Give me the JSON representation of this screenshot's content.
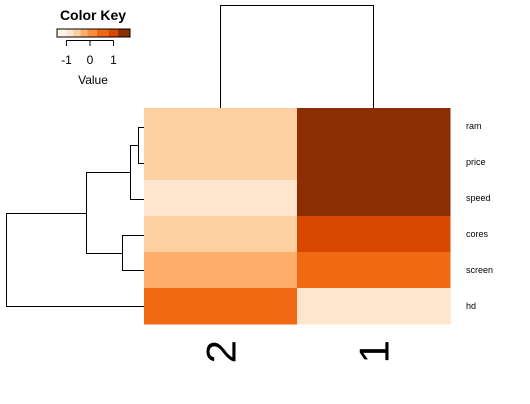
{
  "chart_data": {
    "type": "heatmap",
    "rows": [
      "ram",
      "price",
      "speed",
      "cores",
      "screen",
      "hd"
    ],
    "columns": [
      "2",
      "1"
    ],
    "values": [
      [
        -0.55,
        1.6
      ],
      [
        -0.55,
        1.6
      ],
      [
        -0.85,
        1.6
      ],
      [
        -0.55,
        1.0
      ],
      [
        -0.25,
        0.6
      ],
      [
        0.6,
        -1.0
      ]
    ],
    "color_key": {
      "title": "Color Key",
      "xlabel": "Value",
      "ticks": [
        "-1",
        "0",
        "1"
      ],
      "colors": [
        "#FFF5EB",
        "#FEE6CE",
        "#FDD0A2",
        "#FDAE6B",
        "#FD8D3C",
        "#F16913",
        "#D94801",
        "#8C2D04"
      ],
      "breaks": [
        -1.4,
        -1.0,
        -0.7,
        -0.4,
        -0.1,
        0.3,
        0.8,
        1.2,
        1.7
      ]
    },
    "row_dendrogram": "left",
    "column_dendrogram": "top"
  }
}
